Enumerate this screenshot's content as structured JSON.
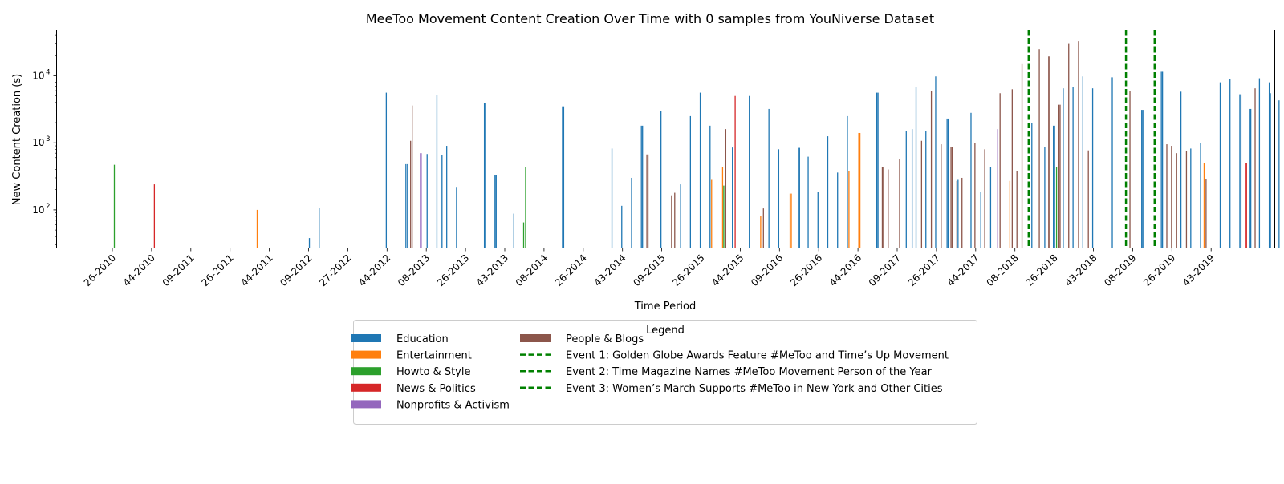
{
  "chart_data": {
    "type": "bar",
    "title": "MeeToo Movement Content Creation Over Time with 0 samples from YouNiverse Dataset",
    "xlabel": "Time Period",
    "ylabel": "New Content Creation (s)",
    "yscale": "log",
    "ylim": [
      27,
      48000
    ],
    "y_ticks": [
      {
        "label": "10",
        "exp": "2",
        "value": 100
      },
      {
        "label": "10",
        "exp": "3",
        "value": 1000
      },
      {
        "label": "10",
        "exp": "4",
        "value": 10000
      }
    ],
    "x_tick_labels": [
      "26-2010",
      "44-2010",
      "09-2011",
      "26-2011",
      "44-2011",
      "09-2012",
      "27-2012",
      "44-2012",
      "08-2013",
      "26-2013",
      "43-2013",
      "08-2014",
      "26-2014",
      "43-2014",
      "09-2015",
      "26-2015",
      "44-2015",
      "09-2016",
      "26-2016",
      "44-2016",
      "09-2017",
      "26-2017",
      "44-2017",
      "08-2018",
      "26-2018",
      "43-2018",
      "08-2019",
      "26-2019",
      "43-2019"
    ],
    "x_range": [
      0,
      30
    ],
    "legend": {
      "title": "Legend",
      "placement": "bottom-center",
      "categories": [
        {
          "name": "Education",
          "color": "#1f77b4"
        },
        {
          "name": "Entertainment",
          "color": "#ff7f0e"
        },
        {
          "name": "Howto & Style",
          "color": "#2ca02c"
        },
        {
          "name": "News & Politics",
          "color": "#d62728"
        },
        {
          "name": "Nonprofits & Activism",
          "color": "#9467bd"
        },
        {
          "name": "People & Blogs",
          "color": "#8c564b"
        }
      ],
      "events": [
        {
          "name": "Event 1: Golden Globe Awards Feature #MeToo and Time’s Up Movement",
          "color": "#008000",
          "x": 23.35
        },
        {
          "name": "Event 2: Time Magazine Names #MeToo Movement Person of the Year",
          "color": "#008000",
          "x": 25.83
        },
        {
          "name": "Event 3: Women’s March Supports #MeToo in New York and Other Cities",
          "color": "#008000",
          "x": 26.56
        }
      ]
    },
    "bars": [
      {
        "c": "Howto & Style",
        "x": 0.05,
        "v": 470
      },
      {
        "c": "News & Politics",
        "x": 1.07,
        "v": 240
      },
      {
        "c": "Entertainment",
        "x": 3.69,
        "v": 100
      },
      {
        "c": "Education",
        "x": 5.02,
        "v": 38
      },
      {
        "c": "Education",
        "x": 5.27,
        "v": 108
      },
      {
        "c": "Education",
        "x": 6.98,
        "v": 5600
      },
      {
        "c": "Education",
        "x": 7.48,
        "v": 480
      },
      {
        "c": "Education",
        "x": 7.52,
        "v": 480
      },
      {
        "c": "People & Blogs",
        "x": 7.6,
        "v": 1070
      },
      {
        "c": "People & Blogs",
        "x": 7.64,
        "v": 3600
      },
      {
        "c": "Nonprofits & Activism",
        "x": 7.85,
        "v": 700
      },
      {
        "c": "Nonprofits & Activism",
        "x": 7.87,
        "v": 700
      },
      {
        "c": "Education",
        "x": 8.02,
        "v": 680
      },
      {
        "c": "Education",
        "x": 8.27,
        "v": 5200
      },
      {
        "c": "Education",
        "x": 8.4,
        "v": 650
      },
      {
        "c": "Education",
        "x": 8.52,
        "v": 900
      },
      {
        "c": "Education",
        "x": 8.77,
        "v": 220
      },
      {
        "c": "Education",
        "x": 9.48,
        "v": 3900
      },
      {
        "c": "Education",
        "x": 9.51,
        "v": 3900
      },
      {
        "c": "Education",
        "x": 9.75,
        "v": 330
      },
      {
        "c": "Education",
        "x": 9.78,
        "v": 330
      },
      {
        "c": "Education",
        "x": 10.23,
        "v": 88
      },
      {
        "c": "Howto & Style",
        "x": 10.48,
        "v": 65
      },
      {
        "c": "Howto & Style",
        "x": 10.53,
        "v": 440
      },
      {
        "c": "Education",
        "x": 11.47,
        "v": 3500
      },
      {
        "c": "Education",
        "x": 11.5,
        "v": 3500
      },
      {
        "c": "Education",
        "x": 12.73,
        "v": 820
      },
      {
        "c": "Education",
        "x": 12.98,
        "v": 115
      },
      {
        "c": "Education",
        "x": 13.23,
        "v": 300
      },
      {
        "c": "Education",
        "x": 13.48,
        "v": 1800
      },
      {
        "c": "Education",
        "x": 13.51,
        "v": 1800
      },
      {
        "c": "People & Blogs",
        "x": 13.62,
        "v": 670
      },
      {
        "c": "People & Blogs",
        "x": 13.65,
        "v": 670
      },
      {
        "c": "Education",
        "x": 13.98,
        "v": 3000
      },
      {
        "c": "People & Blogs",
        "x": 14.25,
        "v": 165
      },
      {
        "c": "People & Blogs",
        "x": 14.33,
        "v": 180
      },
      {
        "c": "Education",
        "x": 14.48,
        "v": 240
      },
      {
        "c": "Education",
        "x": 14.73,
        "v": 2500
      },
      {
        "c": "Education",
        "x": 14.98,
        "v": 5600
      },
      {
        "c": "Education",
        "x": 15.23,
        "v": 1800
      },
      {
        "c": "Entertainment",
        "x": 15.27,
        "v": 280
      },
      {
        "c": "Entertainment",
        "x": 15.55,
        "v": 440
      },
      {
        "c": "Howto & Style",
        "x": 15.58,
        "v": 230
      },
      {
        "c": "People & Blogs",
        "x": 15.63,
        "v": 1600
      },
      {
        "c": "Education",
        "x": 15.8,
        "v": 850
      },
      {
        "c": "News & Politics",
        "x": 15.87,
        "v": 5000
      },
      {
        "c": "Education",
        "x": 16.23,
        "v": 5000
      },
      {
        "c": "Entertainment",
        "x": 16.52,
        "v": 80
      },
      {
        "c": "People & Blogs",
        "x": 16.59,
        "v": 105
      },
      {
        "c": "Education",
        "x": 16.73,
        "v": 3200
      },
      {
        "c": "Education",
        "x": 16.98,
        "v": 800
      },
      {
        "c": "Entertainment",
        "x": 17.27,
        "v": 175
      },
      {
        "c": "Entertainment",
        "x": 17.3,
        "v": 175
      },
      {
        "c": "Education",
        "x": 17.48,
        "v": 840
      },
      {
        "c": "Education",
        "x": 17.51,
        "v": 840
      },
      {
        "c": "Education",
        "x": 17.73,
        "v": 620
      },
      {
        "c": "Education",
        "x": 17.98,
        "v": 185
      },
      {
        "c": "Education",
        "x": 18.23,
        "v": 1250
      },
      {
        "c": "Education",
        "x": 18.48,
        "v": 360
      },
      {
        "c": "Education",
        "x": 18.73,
        "v": 2500
      },
      {
        "c": "Entertainment",
        "x": 18.77,
        "v": 380
      },
      {
        "c": "Entertainment",
        "x": 19.02,
        "v": 1400
      },
      {
        "c": "Entertainment",
        "x": 19.05,
        "v": 1400
      },
      {
        "c": "Education",
        "x": 19.48,
        "v": 5600
      },
      {
        "c": "Education",
        "x": 19.51,
        "v": 5600
      },
      {
        "c": "People & Blogs",
        "x": 19.62,
        "v": 430
      },
      {
        "c": "People & Blogs",
        "x": 19.65,
        "v": 430
      },
      {
        "c": "People & Blogs",
        "x": 19.77,
        "v": 400
      },
      {
        "c": "People & Blogs",
        "x": 20.06,
        "v": 580
      },
      {
        "c": "Education",
        "x": 20.23,
        "v": 1500
      },
      {
        "c": "Education",
        "x": 20.38,
        "v": 1600
      },
      {
        "c": "Education",
        "x": 20.48,
        "v": 6800
      },
      {
        "c": "People & Blogs",
        "x": 20.62,
        "v": 1070
      },
      {
        "c": "Education",
        "x": 20.73,
        "v": 1500
      },
      {
        "c": "People & Blogs",
        "x": 20.87,
        "v": 6000
      },
      {
        "c": "Education",
        "x": 20.98,
        "v": 9800
      },
      {
        "c": "People & Blogs",
        "x": 21.12,
        "v": 950
      },
      {
        "c": "Education",
        "x": 21.27,
        "v": 2300
      },
      {
        "c": "Education",
        "x": 21.3,
        "v": 2300
      },
      {
        "c": "People & Blogs",
        "x": 21.37,
        "v": 870
      },
      {
        "c": "People & Blogs",
        "x": 21.4,
        "v": 870
      },
      {
        "c": "People & Blogs",
        "x": 21.52,
        "v": 270
      },
      {
        "c": "Education",
        "x": 21.55,
        "v": 280
      },
      {
        "c": "People & Blogs",
        "x": 21.65,
        "v": 300
      },
      {
        "c": "Education",
        "x": 21.88,
        "v": 2800
      },
      {
        "c": "People & Blogs",
        "x": 21.98,
        "v": 1000
      },
      {
        "c": "Education",
        "x": 22.13,
        "v": 185
      },
      {
        "c": "People & Blogs",
        "x": 22.23,
        "v": 800
      },
      {
        "c": "Education",
        "x": 22.38,
        "v": 440
      },
      {
        "c": "Nonprofits & Activism",
        "x": 22.56,
        "v": 1600
      },
      {
        "c": "People & Blogs",
        "x": 22.62,
        "v": 5500
      },
      {
        "c": "Entertainment",
        "x": 22.87,
        "v": 270
      },
      {
        "c": "People & Blogs",
        "x": 22.93,
        "v": 6300
      },
      {
        "c": "People & Blogs",
        "x": 23.05,
        "v": 380
      },
      {
        "c": "People & Blogs",
        "x": 23.18,
        "v": 15000
      },
      {
        "c": "Education",
        "x": 23.43,
        "v": 1950
      },
      {
        "c": "People & Blogs",
        "x": 23.62,
        "v": 25000
      },
      {
        "c": "Education",
        "x": 23.76,
        "v": 870
      },
      {
        "c": "People & Blogs",
        "x": 23.86,
        "v": 19500
      },
      {
        "c": "People & Blogs",
        "x": 23.89,
        "v": 19500
      },
      {
        "c": "Education",
        "x": 23.98,
        "v": 1800
      },
      {
        "c": "Education",
        "x": 24.01,
        "v": 1800
      },
      {
        "c": "Howto & Style",
        "x": 24.06,
        "v": 430
      },
      {
        "c": "People & Blogs",
        "x": 24.12,
        "v": 3700
      },
      {
        "c": "People & Blogs",
        "x": 24.15,
        "v": 3700
      },
      {
        "c": "Education",
        "x": 24.23,
        "v": 6500
      },
      {
        "c": "People & Blogs",
        "x": 24.37,
        "v": 30000
      },
      {
        "c": "Education",
        "x": 24.48,
        "v": 6800
      },
      {
        "c": "People & Blogs",
        "x": 24.62,
        "v": 33000
      },
      {
        "c": "Education",
        "x": 24.73,
        "v": 9800
      },
      {
        "c": "People & Blogs",
        "x": 24.87,
        "v": 770
      },
      {
        "c": "Education",
        "x": 24.98,
        "v": 6500
      },
      {
        "c": "Education",
        "x": 25.48,
        "v": 9500
      },
      {
        "c": "People & Blogs",
        "x": 25.93,
        "v": 6000
      },
      {
        "c": "Education",
        "x": 26.23,
        "v": 3100
      },
      {
        "c": "Education",
        "x": 26.26,
        "v": 3100
      },
      {
        "c": "Education",
        "x": 26.73,
        "v": 11500
      },
      {
        "c": "Education",
        "x": 26.76,
        "v": 11500
      },
      {
        "c": "People & Blogs",
        "x": 26.87,
        "v": 950
      },
      {
        "c": "People & Blogs",
        "x": 26.99,
        "v": 900
      },
      {
        "c": "People & Blogs",
        "x": 27.12,
        "v": 700
      },
      {
        "c": "Education",
        "x": 27.23,
        "v": 5800
      },
      {
        "c": "People & Blogs",
        "x": 27.37,
        "v": 750
      },
      {
        "c": "Education",
        "x": 27.48,
        "v": 820
      },
      {
        "c": "Education",
        "x": 27.73,
        "v": 1000
      },
      {
        "c": "Entertainment",
        "x": 27.82,
        "v": 500
      },
      {
        "c": "People & Blogs",
        "x": 27.87,
        "v": 290
      },
      {
        "c": "Education",
        "x": 28.23,
        "v": 8000
      },
      {
        "c": "Education",
        "x": 28.48,
        "v": 8900
      },
      {
        "c": "Education",
        "x": 28.73,
        "v": 5300
      },
      {
        "c": "Education",
        "x": 28.76,
        "v": 5300
      },
      {
        "c": "News & Politics",
        "x": 28.87,
        "v": 500
      },
      {
        "c": "News & Politics",
        "x": 28.9,
        "v": 500
      },
      {
        "c": "Education",
        "x": 28.98,
        "v": 3200
      },
      {
        "c": "Education",
        "x": 29.01,
        "v": 3200
      },
      {
        "c": "People & Blogs",
        "x": 29.12,
        "v": 6500
      },
      {
        "c": "Education",
        "x": 29.23,
        "v": 9200
      },
      {
        "c": "Education",
        "x": 29.48,
        "v": 8000
      },
      {
        "c": "Education",
        "x": 29.51,
        "v": 5500
      },
      {
        "c": "Education",
        "x": 29.73,
        "v": 4300
      },
      {
        "c": "People & Blogs",
        "x": 29.87,
        "v": 830
      }
    ]
  }
}
